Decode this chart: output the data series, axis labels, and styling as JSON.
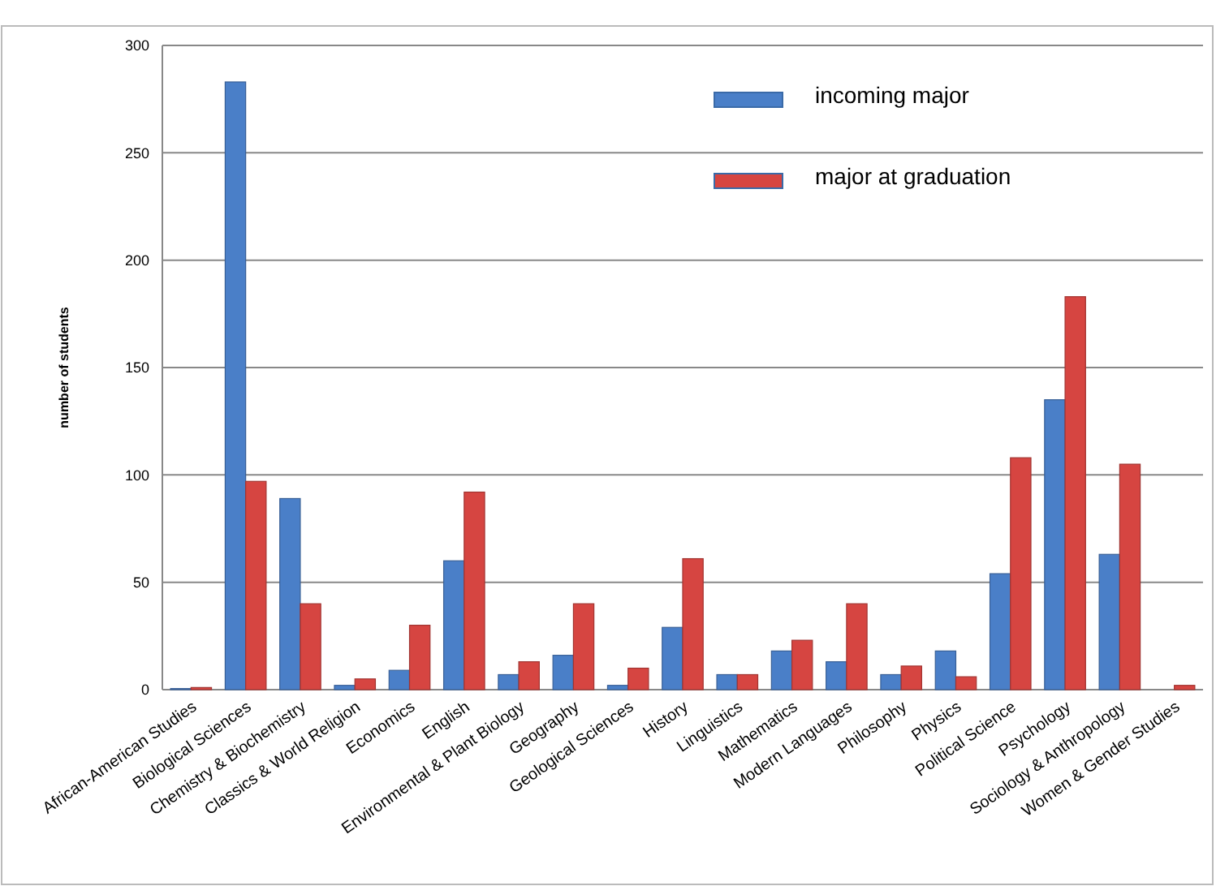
{
  "chart_data": {
    "type": "bar",
    "ylabel": "number of students",
    "categories": [
      "African-American Studies",
      "Biological Sciences",
      "Chemistry & Biochemistry",
      "Classics & World Religion",
      "Economics",
      "English",
      "Environmental & Plant Biology",
      "Geography",
      "Geological Sciences",
      "History",
      "Linguistics",
      "Mathematics",
      "Modern Languages",
      "Philosophy",
      "Physics",
      "Political Science",
      "Psychology",
      "Sociology & Anthropology",
      "Women & Gender Studies"
    ],
    "series": [
      {
        "name": "incoming major",
        "color": "#4a7fc8",
        "values": [
          0.5,
          283,
          89,
          2,
          9,
          60,
          7,
          16,
          2,
          29,
          7,
          18,
          13,
          7,
          18,
          54,
          135,
          63,
          0
        ]
      },
      {
        "name": "major at graduation",
        "color": "#d64541",
        "values": [
          1,
          97,
          40,
          5,
          30,
          92,
          13,
          40,
          10,
          61,
          7,
          23,
          40,
          11,
          6,
          108,
          183,
          105,
          2
        ]
      }
    ],
    "ylim": [
      0,
      300
    ],
    "yticks": [
      0,
      50,
      100,
      150,
      200,
      250,
      300
    ],
    "grid": "y",
    "legend": "top right"
  }
}
